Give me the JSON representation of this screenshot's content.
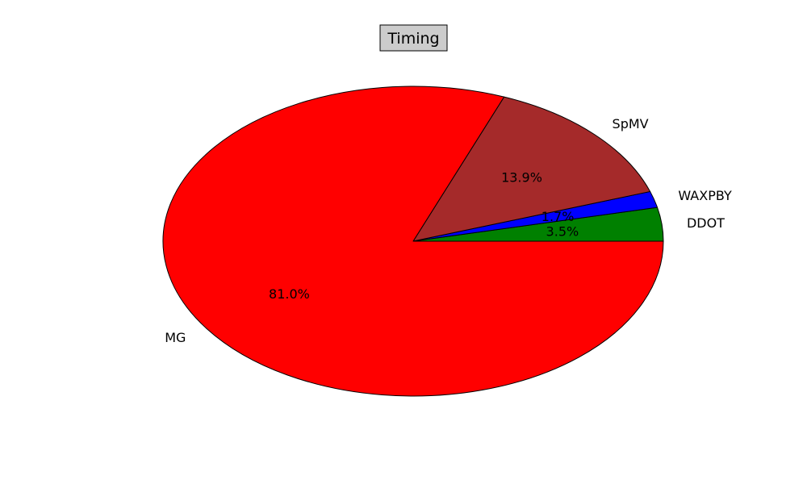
{
  "chart_data": {
    "type": "pie",
    "title": "Timing",
    "slices": [
      {
        "label": "DDOT",
        "value": 3.5,
        "pct_label": "3.5%",
        "color": "#008000"
      },
      {
        "label": "WAXPBY",
        "value": 1.7,
        "pct_label": "1.7%",
        "color": "#0000ff"
      },
      {
        "label": "SpMV",
        "value": 13.9,
        "pct_label": "13.9%",
        "color": "#a52a2a"
      },
      {
        "label": "MG",
        "value": 81.0,
        "pct_label": "81.0%",
        "color": "#ff0000"
      }
    ],
    "start_angle_deg": 0,
    "direction": "counterclockwise",
    "legend": "none",
    "title_box_fill": "#cccccc"
  }
}
